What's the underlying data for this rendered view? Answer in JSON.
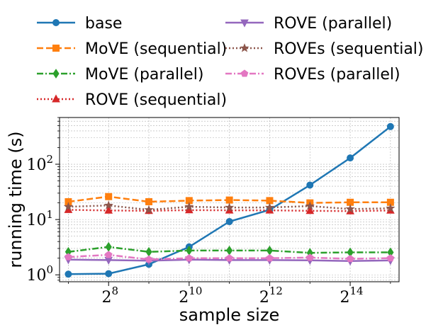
{
  "chart_data": {
    "type": "line",
    "xlabel": "sample size",
    "ylabel": "running time (s)",
    "x_scale": "log2",
    "y_scale": "log10",
    "x": [
      128,
      256,
      512,
      1024,
      2048,
      4096,
      8192,
      16384,
      32768
    ],
    "xlim": [
      110,
      38000
    ],
    "ylim": [
      0.75,
      700
    ],
    "x_ticks": [
      {
        "value": 256,
        "base": "2",
        "exp": "8"
      },
      {
        "value": 1024,
        "base": "2",
        "exp": "10"
      },
      {
        "value": 4096,
        "base": "2",
        "exp": "12"
      },
      {
        "value": 16384,
        "base": "2",
        "exp": "14"
      }
    ],
    "y_ticks": [
      {
        "value": 1,
        "base": "10",
        "exp": "0"
      },
      {
        "value": 10,
        "base": "10",
        "exp": "1"
      },
      {
        "value": 100,
        "base": "10",
        "exp": "2"
      }
    ],
    "grid": true,
    "legend_position": "top, above plot, two columns",
    "series": [
      {
        "name": "base",
        "color": "#1f77b4",
        "dash": "solid",
        "marker": "circle",
        "values": [
          1.03,
          1.05,
          1.55,
          3.2,
          9.2,
          15,
          42,
          130,
          480
        ]
      },
      {
        "name": "MoVE (sequential)",
        "color": "#ff7f0e",
        "dash": "dashed",
        "marker": "square",
        "values": [
          21,
          26,
          21,
          22,
          22.5,
          22,
          20,
          20.5,
          20.5
        ]
      },
      {
        "name": "MoVE (parallel)",
        "color": "#2ca02c",
        "dash": "dashdot",
        "marker": "diamond",
        "values": [
          2.6,
          3.2,
          2.6,
          2.75,
          2.75,
          2.75,
          2.5,
          2.55,
          2.55
        ]
      },
      {
        "name": "ROVE (sequential)",
        "color": "#d62728",
        "dash": "dotted",
        "marker": "triangle-up",
        "values": [
          15,
          14.6,
          14.4,
          14.8,
          14.7,
          14.7,
          14.4,
          14.2,
          14.6
        ]
      },
      {
        "name": "ROVE (parallel)",
        "color": "#9467bd",
        "dash": "solid",
        "marker": "triangle-down",
        "values": [
          1.88,
          1.85,
          1.8,
          1.88,
          1.85,
          1.85,
          1.83,
          1.78,
          1.82
        ]
      },
      {
        "name": "ROVEs (sequential)",
        "color": "#8c564b",
        "dash": "dotted",
        "marker": "star",
        "values": [
          17,
          18,
          15,
          17,
          16.5,
          16.5,
          17.5,
          15.5,
          16
        ]
      },
      {
        "name": "ROVEs (parallel)",
        "color": "#e377c2",
        "dash": "dashdot",
        "marker": "pentagon",
        "values": [
          2.1,
          2.3,
          1.9,
          2.0,
          2.0,
          2.0,
          2.05,
          1.95,
          2.0
        ]
      }
    ]
  }
}
